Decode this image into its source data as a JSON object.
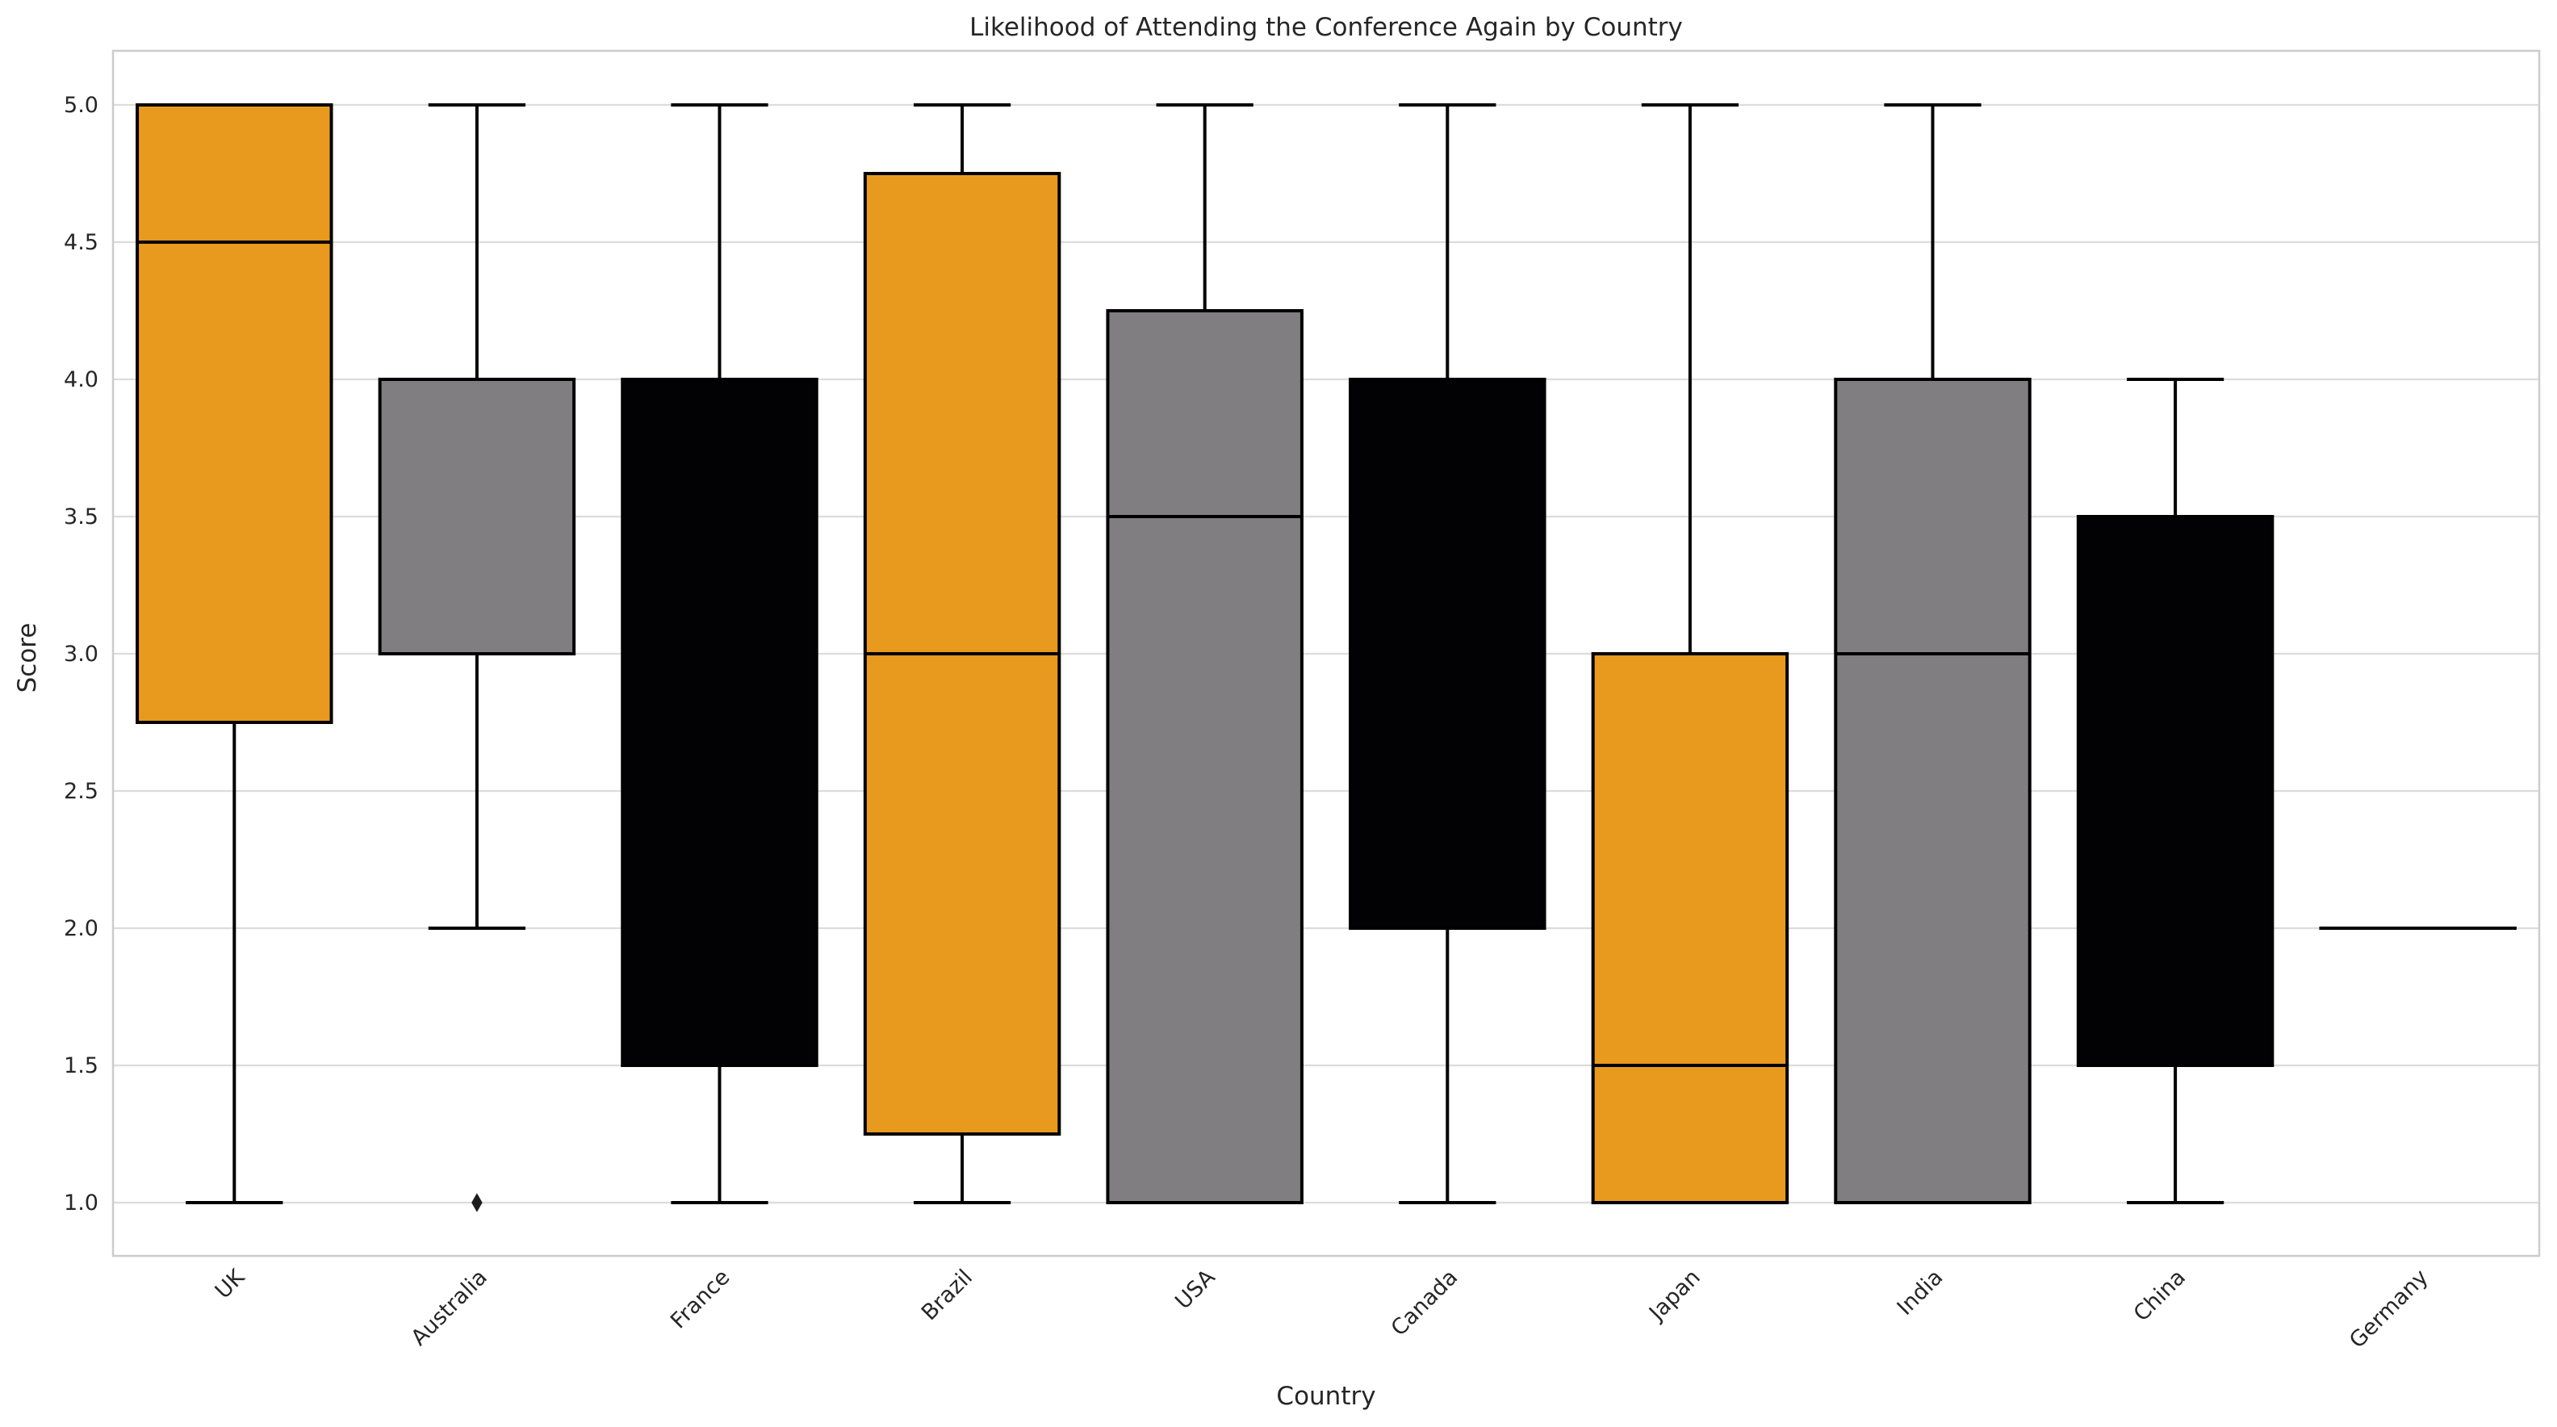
{
  "chart_data": {
    "type": "box",
    "title": "Likelihood of Attending the Conference Again by Country",
    "xlabel": "Country",
    "ylabel": "Score",
    "ylim": [
      0.8,
      5.2
    ],
    "yticks": [
      1.0,
      1.5,
      2.0,
      2.5,
      3.0,
      3.5,
      4.0,
      4.5,
      5.0
    ],
    "grid": true,
    "colors": {
      "orange": "#e89a1e",
      "gray": "#807e80",
      "black": "#020103"
    },
    "categories": [
      "UK",
      "Australia",
      "France",
      "Brazil",
      "USA",
      "Canada",
      "Japan",
      "India",
      "China",
      "Germany"
    ],
    "boxes": [
      {
        "category": "UK",
        "whisker_low": 1.0,
        "q1": 2.75,
        "median": 4.5,
        "q3": 5.0,
        "whisker_high": 5.0,
        "outliers": [],
        "color": "#e89a1e"
      },
      {
        "category": "Australia",
        "whisker_low": 2.0,
        "q1": 3.0,
        "median": 4.0,
        "q3": 4.0,
        "whisker_high": 5.0,
        "outliers": [
          1.0
        ],
        "color": "#807e80"
      },
      {
        "category": "France",
        "whisker_low": 1.0,
        "q1": 1.5,
        "median": 4.0,
        "q3": 4.0,
        "whisker_high": 5.0,
        "outliers": [],
        "color": "#020103"
      },
      {
        "category": "Brazil",
        "whisker_low": 1.0,
        "q1": 1.25,
        "median": 3.0,
        "q3": 4.75,
        "whisker_high": 5.0,
        "outliers": [],
        "color": "#e89a1e"
      },
      {
        "category": "USA",
        "whisker_low": 1.0,
        "q1": 1.0,
        "median": 3.5,
        "q3": 4.25,
        "whisker_high": 5.0,
        "outliers": [],
        "color": "#807e80"
      },
      {
        "category": "Canada",
        "whisker_low": 1.0,
        "q1": 2.0,
        "median": 4.0,
        "q3": 4.0,
        "whisker_high": 5.0,
        "outliers": [],
        "color": "#020103"
      },
      {
        "category": "Japan",
        "whisker_low": 1.0,
        "q1": 1.0,
        "median": 1.5,
        "q3": 3.0,
        "whisker_high": 5.0,
        "outliers": [],
        "color": "#e89a1e"
      },
      {
        "category": "India",
        "whisker_low": 1.0,
        "q1": 1.0,
        "median": 3.0,
        "q3": 4.0,
        "whisker_high": 5.0,
        "outliers": [],
        "color": "#807e80"
      },
      {
        "category": "China",
        "whisker_low": 1.0,
        "q1": 1.5,
        "median": 3.5,
        "q3": 3.5,
        "whisker_high": 4.0,
        "outliers": [],
        "color": "#020103"
      },
      {
        "category": "Germany",
        "whisker_low": 2.0,
        "q1": 2.0,
        "median": 2.0,
        "q3": 2.0,
        "whisker_high": 2.0,
        "outliers": [],
        "color": "#e89a1e"
      }
    ]
  }
}
